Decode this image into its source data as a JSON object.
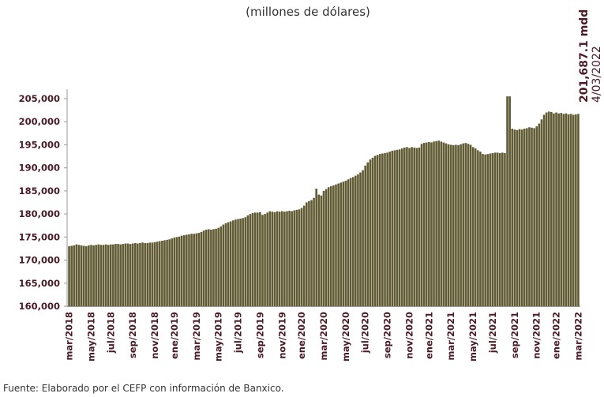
{
  "chart_data": {
    "type": "bar",
    "title": "(millones  de  dólares)",
    "annotations": [
      "201,687.1 mdd",
      "4/03/2022"
    ],
    "source": "Fuente: Elaborado por el CEFP con información de Banxico.",
    "color": "#605b33",
    "ylim": [
      160000,
      207000
    ],
    "yticks": [
      {
        "value": 160000,
        "label": "160,000"
      },
      {
        "value": 165000,
        "label": "165,000"
      },
      {
        "value": 170000,
        "label": "170,000"
      },
      {
        "value": 175000,
        "label": "175,000"
      },
      {
        "value": 180000,
        "label": "180,000"
      },
      {
        "value": 185000,
        "label": "185,000"
      },
      {
        "value": 190000,
        "label": "190,000"
      },
      {
        "value": 195000,
        "label": "195,000"
      },
      {
        "value": 200000,
        "label": "200,000"
      },
      {
        "value": 205000,
        "label": "205,000"
      }
    ],
    "grid": false,
    "categories": [
      "mar/2018",
      null,
      null,
      null,
      null,
      null,
      null,
      null,
      null,
      "may/2018",
      null,
      null,
      null,
      null,
      null,
      null,
      null,
      "jul/2018",
      null,
      null,
      null,
      null,
      null,
      null,
      null,
      null,
      "sep/2018",
      null,
      null,
      null,
      null,
      null,
      null,
      null,
      null,
      "nov/2018",
      null,
      null,
      null,
      null,
      null,
      null,
      null,
      "ene/2019",
      null,
      null,
      null,
      null,
      null,
      null,
      null,
      null,
      "mar/2019",
      null,
      null,
      null,
      null,
      null,
      null,
      null,
      null,
      "may/2019",
      null,
      null,
      null,
      null,
      null,
      null,
      null,
      "jul/2019",
      null,
      null,
      null,
      null,
      null,
      null,
      null,
      null,
      "sep/2019",
      null,
      null,
      null,
      null,
      null,
      null,
      null,
      null,
      "nov/2019",
      null,
      null,
      null,
      null,
      null,
      null,
      null,
      "ene/2020",
      null,
      null,
      null,
      null,
      null,
      null,
      null,
      null,
      "mar/2020",
      null,
      null,
      null,
      null,
      null,
      null,
      null,
      null,
      "may/2020",
      null,
      null,
      null,
      null,
      null,
      null,
      null,
      "jul/2020",
      null,
      null,
      null,
      null,
      null,
      null,
      null,
      null,
      "sep/2020",
      null,
      null,
      null,
      null,
      null,
      null,
      null,
      null,
      "nov/2020",
      null,
      null,
      null,
      null,
      null,
      null,
      null,
      "ene/2021",
      null,
      null,
      null,
      null,
      null,
      null,
      null,
      null,
      "mar/2021",
      null,
      null,
      null,
      null,
      null,
      null,
      null,
      null,
      "may/2021",
      null,
      null,
      null,
      null,
      null,
      null,
      null,
      "jul/2021",
      null,
      null,
      null,
      null,
      null,
      null,
      null,
      null,
      "sep/2021",
      null,
      null,
      null,
      null,
      null,
      null,
      null,
      null,
      "nov/2021",
      null,
      null,
      null,
      null,
      null,
      null,
      null,
      "ene/2022",
      null,
      null,
      null,
      null,
      null,
      null,
      null,
      null,
      "mar/2022"
    ],
    "values": [
      173000,
      173100,
      173200,
      173400,
      173300,
      173200,
      173100,
      173000,
      173200,
      173300,
      173200,
      173300,
      173400,
      173300,
      173300,
      173400,
      173300,
      173400,
      173400,
      173500,
      173500,
      173400,
      173500,
      173600,
      173600,
      173500,
      173600,
      173700,
      173600,
      173700,
      173800,
      173700,
      173700,
      173800,
      173800,
      173900,
      174000,
      174100,
      174200,
      174300,
      174400,
      174500,
      174700,
      174900,
      175000,
      175100,
      175300,
      175400,
      175500,
      175600,
      175700,
      175700,
      175800,
      175900,
      176100,
      176400,
      176600,
      176700,
      176600,
      176700,
      176800,
      177000,
      177300,
      177700,
      178000,
      178200,
      178400,
      178600,
      178800,
      178900,
      179000,
      179100,
      179300,
      179700,
      180000,
      180200,
      180300,
      180300,
      180400,
      179800,
      180000,
      180300,
      180600,
      180500,
      180400,
      180600,
      180500,
      180600,
      180500,
      180600,
      180700,
      180600,
      180800,
      180900,
      181000,
      181300,
      181800,
      182500,
      182800,
      183000,
      183500,
      185500,
      184200,
      184000,
      185000,
      185400,
      185800,
      186000,
      186200,
      186400,
      186600,
      186800,
      187000,
      187200,
      187500,
      187800,
      188000,
      188300,
      188600,
      189000,
      189500,
      190500,
      191200,
      191800,
      192200,
      192600,
      192800,
      193000,
      193100,
      193200,
      193300,
      193500,
      193700,
      193800,
      193900,
      194000,
      194200,
      194400,
      194500,
      194300,
      194500,
      194400,
      194300,
      194400,
      195200,
      195400,
      195500,
      195600,
      195500,
      195700,
      195800,
      195900,
      195700,
      195500,
      195300,
      195100,
      195000,
      194900,
      195000,
      194900,
      195100,
      195300,
      195400,
      195200,
      195000,
      194500,
      194200,
      193800,
      193500,
      193000,
      192900,
      193000,
      193100,
      193200,
      193300,
      193300,
      193200,
      193300,
      193200,
      205500,
      205500,
      198500,
      198300,
      198200,
      198400,
      198300,
      198500,
      198600,
      198800,
      198700,
      198600,
      199000,
      199600,
      200500,
      201500,
      202000,
      202200,
      202100,
      201800,
      202000,
      201800,
      201900,
      201700,
      201800,
      201600,
      201700,
      201500,
      201600,
      201687.1
    ]
  }
}
